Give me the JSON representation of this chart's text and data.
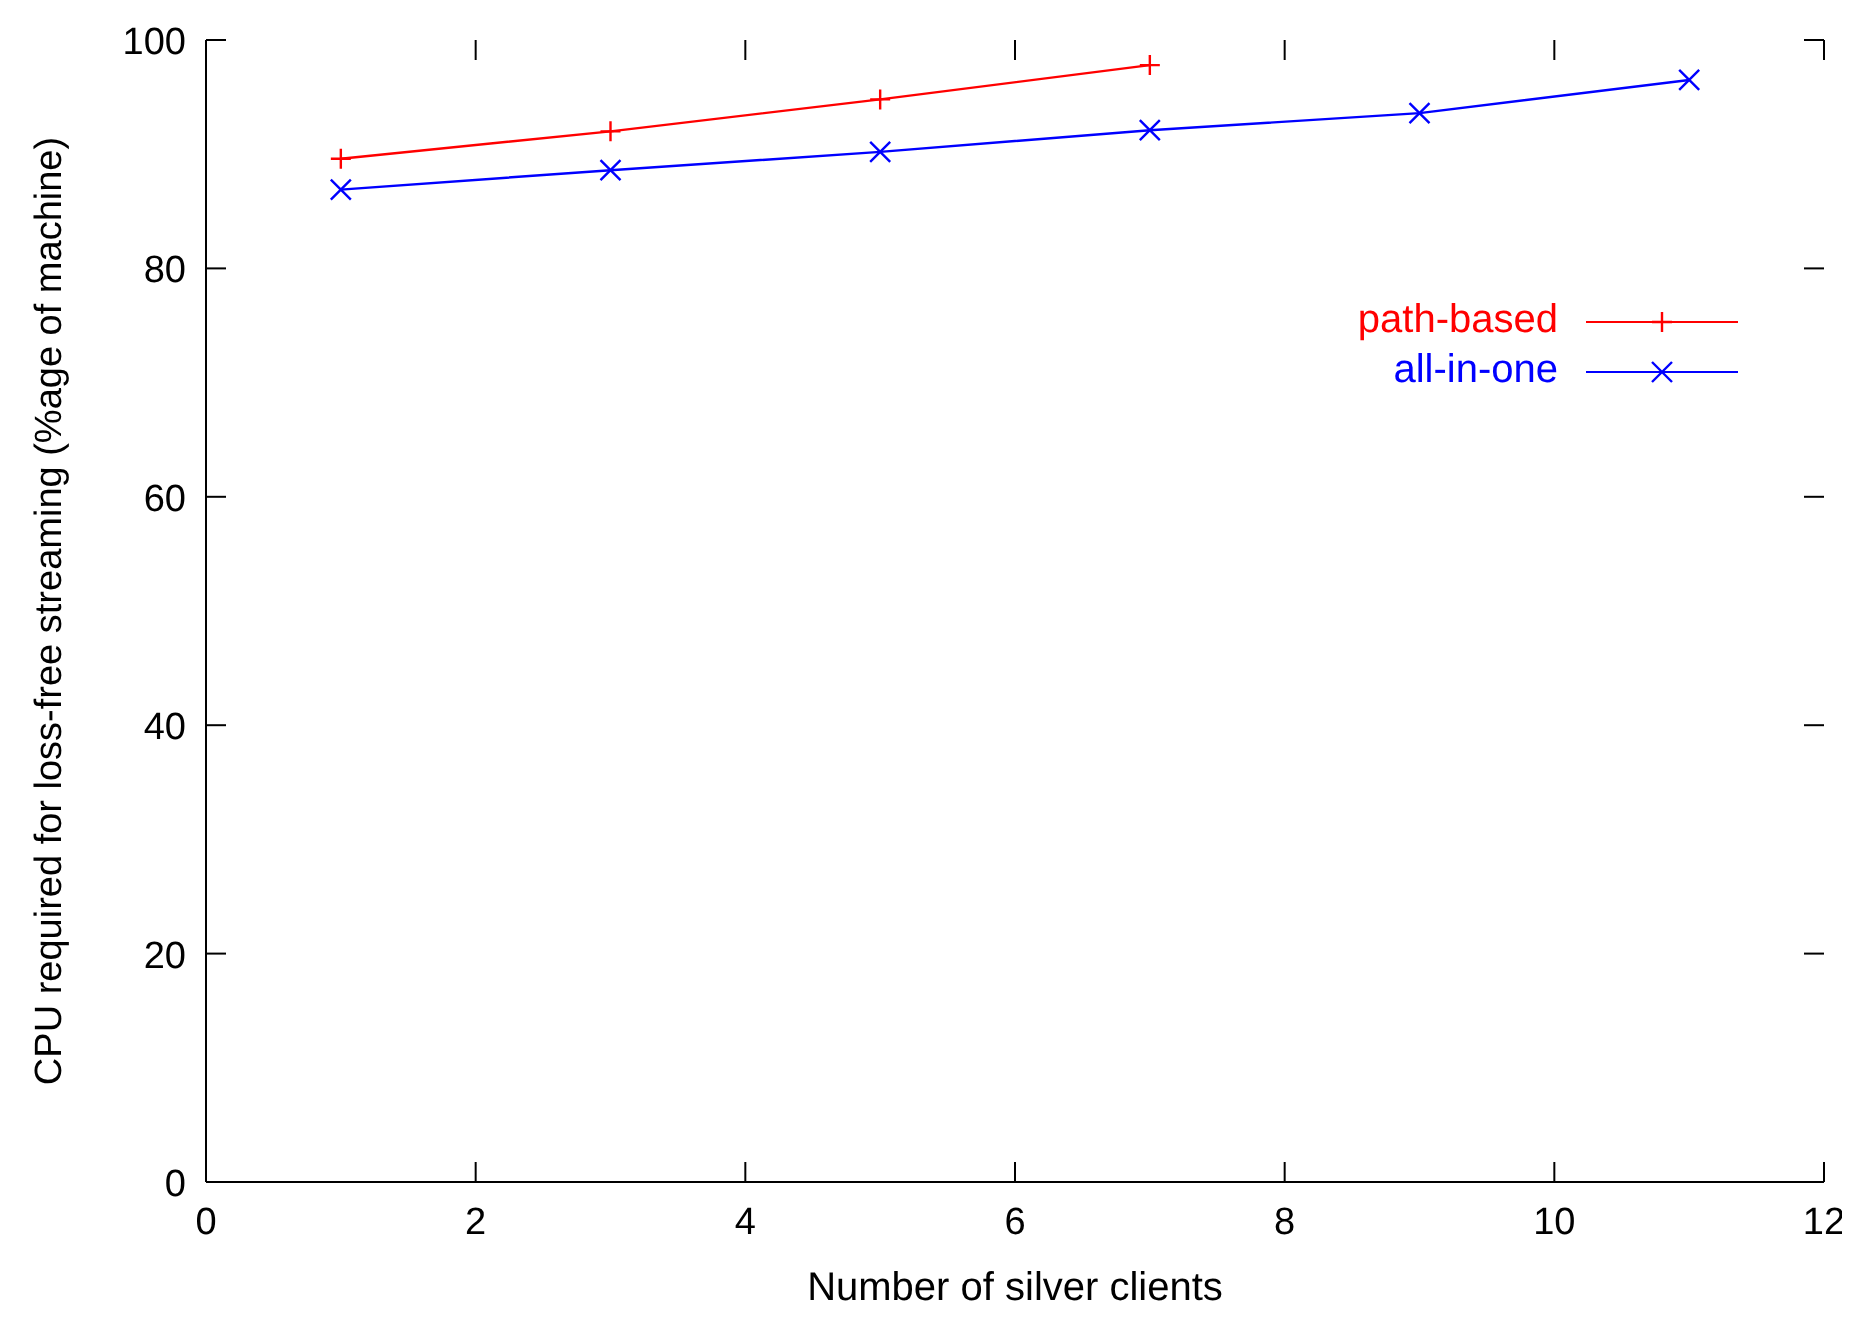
{
  "chart_data": {
    "type": "line",
    "xlabel": "Number of silver clients",
    "ylabel": "CPU required for loss-free streaming (%age of machine)",
    "x": [
      1,
      3,
      5,
      7,
      9,
      11
    ],
    "series": [
      {
        "name": "path-based",
        "color": "#ff0000",
        "marker": "cross",
        "values": [
          89.6,
          92.0,
          94.8,
          97.8,
          null,
          null
        ]
      },
      {
        "name": "all-in-one",
        "color": "#0000ff",
        "marker": "x",
        "values": [
          86.9,
          88.6,
          90.2,
          92.1,
          93.6,
          96.5
        ]
      }
    ],
    "xlim": [
      0,
      12
    ],
    "xticks": [
      0,
      2,
      4,
      6,
      8,
      10,
      12
    ],
    "ylim": [
      0,
      100
    ],
    "yticks": [
      0,
      20,
      40,
      60,
      80,
      100
    ],
    "grid": false,
    "legend": "top right",
    "line_style": "solid"
  }
}
